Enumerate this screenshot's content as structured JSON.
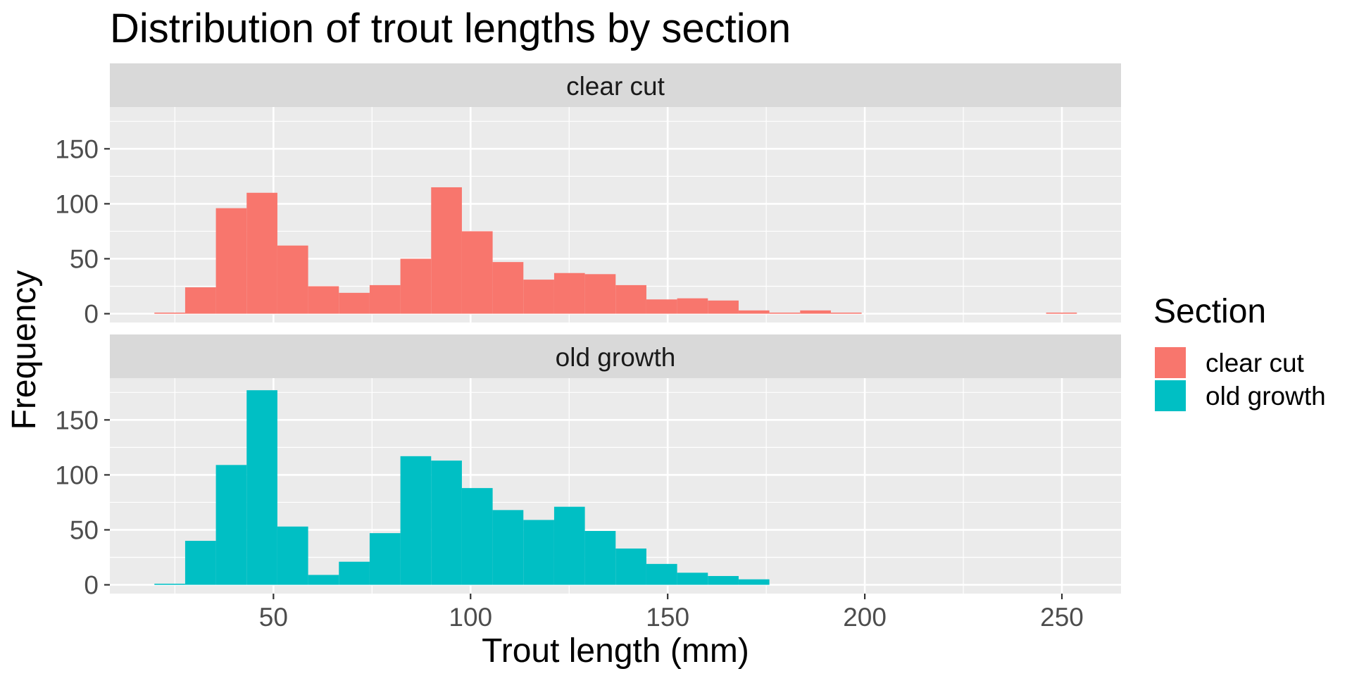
{
  "chart_data": {
    "type": "bar",
    "title": "Distribution of trout lengths by section",
    "xlabel": "Trout length (mm)",
    "ylabel": "Frequency",
    "xlim": [
      8.5,
      265
    ],
    "ylim": [
      -8,
      188
    ],
    "x_ticks": [
      50,
      100,
      150,
      200,
      250
    ],
    "y_ticks": [
      0,
      50,
      100,
      150
    ],
    "bin_width": 7.8,
    "legend": {
      "title": "Section",
      "position": "right"
    },
    "grid": true,
    "panels": [
      {
        "label": "clear cut",
        "series": "clear cut",
        "bins": [
          {
            "x0": 19.8,
            "x1": 27.6,
            "count": 1
          },
          {
            "x0": 27.6,
            "x1": 35.4,
            "count": 24
          },
          {
            "x0": 35.4,
            "x1": 43.2,
            "count": 96
          },
          {
            "x0": 43.2,
            "x1": 51.0,
            "count": 110
          },
          {
            "x0": 51.0,
            "x1": 58.8,
            "count": 62
          },
          {
            "x0": 58.8,
            "x1": 66.6,
            "count": 25
          },
          {
            "x0": 66.6,
            "x1": 74.4,
            "count": 19
          },
          {
            "x0": 74.4,
            "x1": 82.2,
            "count": 26
          },
          {
            "x0": 82.2,
            "x1": 90.0,
            "count": 50
          },
          {
            "x0": 90.0,
            "x1": 97.8,
            "count": 115
          },
          {
            "x0": 97.8,
            "x1": 105.6,
            "count": 75
          },
          {
            "x0": 105.6,
            "x1": 113.4,
            "count": 47
          },
          {
            "x0": 113.4,
            "x1": 121.2,
            "count": 31
          },
          {
            "x0": 121.2,
            "x1": 129.0,
            "count": 37
          },
          {
            "x0": 129.0,
            "x1": 136.8,
            "count": 36
          },
          {
            "x0": 136.8,
            "x1": 144.6,
            "count": 26
          },
          {
            "x0": 144.6,
            "x1": 152.4,
            "count": 13
          },
          {
            "x0": 152.4,
            "x1": 160.2,
            "count": 14
          },
          {
            "x0": 160.2,
            "x1": 168.0,
            "count": 12
          },
          {
            "x0": 168.0,
            "x1": 175.8,
            "count": 3
          },
          {
            "x0": 175.8,
            "x1": 183.6,
            "count": 1
          },
          {
            "x0": 183.6,
            "x1": 191.4,
            "count": 3
          },
          {
            "x0": 191.4,
            "x1": 199.2,
            "count": 1
          },
          {
            "x0": 246.0,
            "x1": 253.8,
            "count": 1
          }
        ]
      },
      {
        "label": "old growth",
        "series": "old growth",
        "bins": [
          {
            "x0": 19.8,
            "x1": 27.6,
            "count": 1
          },
          {
            "x0": 27.6,
            "x1": 35.4,
            "count": 40
          },
          {
            "x0": 35.4,
            "x1": 43.2,
            "count": 109
          },
          {
            "x0": 43.2,
            "x1": 51.0,
            "count": 177
          },
          {
            "x0": 51.0,
            "x1": 58.8,
            "count": 53
          },
          {
            "x0": 58.8,
            "x1": 66.6,
            "count": 9
          },
          {
            "x0": 66.6,
            "x1": 74.4,
            "count": 21
          },
          {
            "x0": 74.4,
            "x1": 82.2,
            "count": 47
          },
          {
            "x0": 82.2,
            "x1": 90.0,
            "count": 117
          },
          {
            "x0": 90.0,
            "x1": 97.8,
            "count": 113
          },
          {
            "x0": 97.8,
            "x1": 105.6,
            "count": 88
          },
          {
            "x0": 105.6,
            "x1": 113.4,
            "count": 68
          },
          {
            "x0": 113.4,
            "x1": 121.2,
            "count": 59
          },
          {
            "x0": 121.2,
            "x1": 129.0,
            "count": 71
          },
          {
            "x0": 129.0,
            "x1": 136.8,
            "count": 49
          },
          {
            "x0": 136.8,
            "x1": 144.6,
            "count": 33
          },
          {
            "x0": 144.6,
            "x1": 152.4,
            "count": 19
          },
          {
            "x0": 152.4,
            "x1": 160.2,
            "count": 11
          },
          {
            "x0": 160.2,
            "x1": 168.0,
            "count": 8
          },
          {
            "x0": 168.0,
            "x1": 175.8,
            "count": 5
          }
        ]
      }
    ],
    "series_colors": {
      "clear cut": "#F8766D",
      "old growth": "#00BFC4"
    }
  }
}
